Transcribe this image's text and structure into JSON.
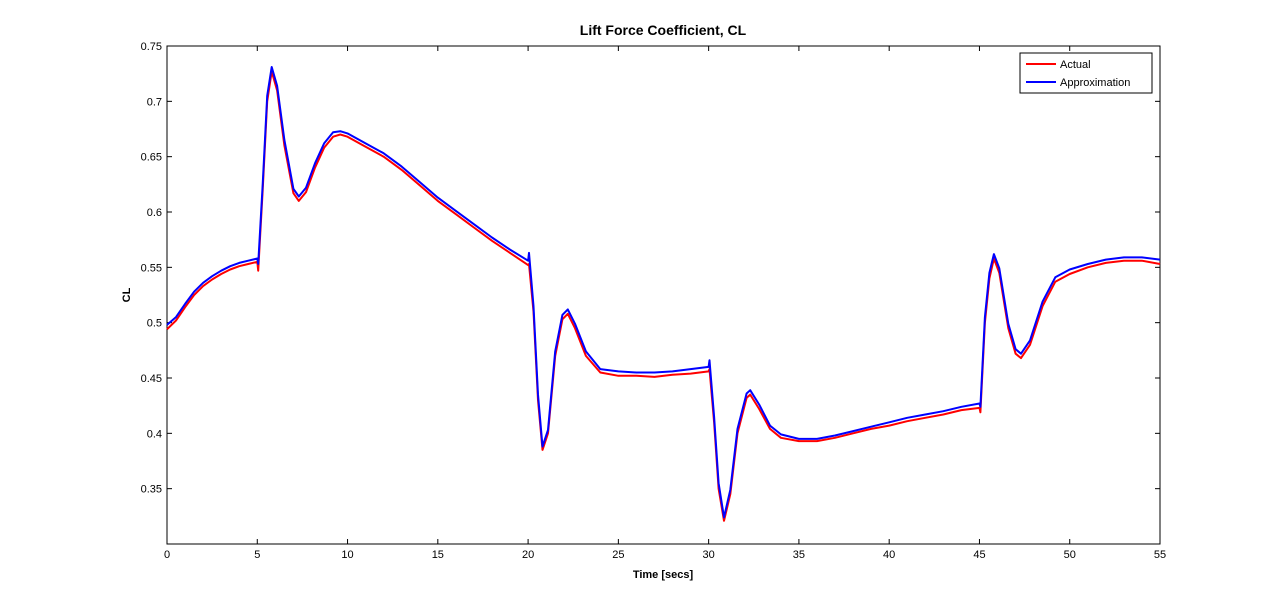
{
  "chart_data": {
    "type": "line",
    "title": "Lift Force Coefficient, CL",
    "xlabel": "Time [secs]",
    "ylabel": "CL",
    "xlim": [
      0,
      55
    ],
    "ylim": [
      0.3,
      0.75
    ],
    "xticks": [
      0,
      5,
      10,
      15,
      20,
      25,
      30,
      35,
      40,
      45,
      50,
      55
    ],
    "yticks": [
      0.35,
      0.4,
      0.45,
      0.5,
      0.55,
      0.6,
      0.65,
      0.7,
      0.75
    ],
    "grid": false,
    "legend_position": "top-right",
    "series": [
      {
        "name": "Actual",
        "color": "#ff0000",
        "points": [
          [
            0,
            0.494
          ],
          [
            0.5,
            0.502
          ],
          [
            1,
            0.514
          ],
          [
            1.5,
            0.525
          ],
          [
            2,
            0.533
          ],
          [
            2.5,
            0.539
          ],
          [
            3,
            0.544
          ],
          [
            3.5,
            0.548
          ],
          [
            4,
            0.551
          ],
          [
            4.5,
            0.553
          ],
          [
            5,
            0.555
          ],
          [
            5.05,
            0.547
          ],
          [
            5.3,
            0.62
          ],
          [
            5.55,
            0.7
          ],
          [
            5.8,
            0.727
          ],
          [
            6.1,
            0.71
          ],
          [
            6.5,
            0.66
          ],
          [
            7,
            0.617
          ],
          [
            7.3,
            0.61
          ],
          [
            7.7,
            0.618
          ],
          [
            8.2,
            0.64
          ],
          [
            8.7,
            0.658
          ],
          [
            9.2,
            0.668
          ],
          [
            9.6,
            0.67
          ],
          [
            10,
            0.668
          ],
          [
            11,
            0.659
          ],
          [
            12,
            0.65
          ],
          [
            13,
            0.638
          ],
          [
            14,
            0.624
          ],
          [
            15,
            0.61
          ],
          [
            16,
            0.598
          ],
          [
            17,
            0.586
          ],
          [
            18,
            0.574
          ],
          [
            19,
            0.563
          ],
          [
            20,
            0.552
          ],
          [
            20.05,
            0.553
          ],
          [
            20.3,
            0.51
          ],
          [
            20.55,
            0.43
          ],
          [
            20.8,
            0.385
          ],
          [
            21.1,
            0.4
          ],
          [
            21.5,
            0.47
          ],
          [
            21.9,
            0.503
          ],
          [
            22.2,
            0.508
          ],
          [
            22.6,
            0.495
          ],
          [
            23.2,
            0.47
          ],
          [
            24,
            0.455
          ],
          [
            25,
            0.452
          ],
          [
            26,
            0.452
          ],
          [
            27,
            0.451
          ],
          [
            28,
            0.453
          ],
          [
            29,
            0.454
          ],
          [
            30,
            0.456
          ],
          [
            30.05,
            0.458
          ],
          [
            30.3,
            0.41
          ],
          [
            30.55,
            0.35
          ],
          [
            30.85,
            0.321
          ],
          [
            31.2,
            0.345
          ],
          [
            31.6,
            0.4
          ],
          [
            32.1,
            0.432
          ],
          [
            32.3,
            0.435
          ],
          [
            32.8,
            0.422
          ],
          [
            33.4,
            0.404
          ],
          [
            34,
            0.396
          ],
          [
            35,
            0.393
          ],
          [
            36,
            0.393
          ],
          [
            37,
            0.396
          ],
          [
            38,
            0.4
          ],
          [
            39,
            0.404
          ],
          [
            40,
            0.407
          ],
          [
            41,
            0.411
          ],
          [
            42,
            0.414
          ],
          [
            43,
            0.417
          ],
          [
            44,
            0.421
          ],
          [
            45,
            0.423
          ],
          [
            45.05,
            0.419
          ],
          [
            45.3,
            0.5
          ],
          [
            45.55,
            0.54
          ],
          [
            45.8,
            0.558
          ],
          [
            46.1,
            0.545
          ],
          [
            46.6,
            0.495
          ],
          [
            47,
            0.472
          ],
          [
            47.3,
            0.468
          ],
          [
            47.8,
            0.48
          ],
          [
            48.5,
            0.515
          ],
          [
            49.2,
            0.537
          ],
          [
            50,
            0.544
          ],
          [
            51,
            0.55
          ],
          [
            52,
            0.554
          ],
          [
            53,
            0.556
          ],
          [
            54,
            0.556
          ],
          [
            55,
            0.553
          ]
        ]
      },
      {
        "name": "Approximation",
        "color": "#0000ff",
        "points": [
          [
            0,
            0.498
          ],
          [
            0.5,
            0.505
          ],
          [
            1,
            0.517
          ],
          [
            1.5,
            0.528
          ],
          [
            2,
            0.536
          ],
          [
            2.5,
            0.542
          ],
          [
            3,
            0.547
          ],
          [
            3.5,
            0.551
          ],
          [
            4,
            0.554
          ],
          [
            4.5,
            0.556
          ],
          [
            5,
            0.558
          ],
          [
            5.05,
            0.553
          ],
          [
            5.3,
            0.625
          ],
          [
            5.55,
            0.705
          ],
          [
            5.8,
            0.731
          ],
          [
            6.1,
            0.714
          ],
          [
            6.5,
            0.665
          ],
          [
            7,
            0.621
          ],
          [
            7.3,
            0.614
          ],
          [
            7.7,
            0.622
          ],
          [
            8.2,
            0.644
          ],
          [
            8.7,
            0.662
          ],
          [
            9.2,
            0.672
          ],
          [
            9.6,
            0.673
          ],
          [
            10,
            0.671
          ],
          [
            11,
            0.662
          ],
          [
            12,
            0.653
          ],
          [
            13,
            0.641
          ],
          [
            14,
            0.627
          ],
          [
            15,
            0.613
          ],
          [
            16,
            0.601
          ],
          [
            17,
            0.589
          ],
          [
            18,
            0.577
          ],
          [
            19,
            0.566
          ],
          [
            20,
            0.556
          ],
          [
            20.05,
            0.563
          ],
          [
            20.3,
            0.515
          ],
          [
            20.55,
            0.435
          ],
          [
            20.8,
            0.388
          ],
          [
            21.1,
            0.403
          ],
          [
            21.5,
            0.474
          ],
          [
            21.9,
            0.507
          ],
          [
            22.2,
            0.512
          ],
          [
            22.6,
            0.499
          ],
          [
            23.2,
            0.474
          ],
          [
            24,
            0.458
          ],
          [
            25,
            0.456
          ],
          [
            26,
            0.455
          ],
          [
            27,
            0.455
          ],
          [
            28,
            0.456
          ],
          [
            29,
            0.458
          ],
          [
            30,
            0.46
          ],
          [
            30.05,
            0.466
          ],
          [
            30.3,
            0.415
          ],
          [
            30.55,
            0.355
          ],
          [
            30.85,
            0.324
          ],
          [
            31.2,
            0.349
          ],
          [
            31.6,
            0.404
          ],
          [
            32.1,
            0.436
          ],
          [
            32.3,
            0.439
          ],
          [
            32.8,
            0.426
          ],
          [
            33.4,
            0.407
          ],
          [
            34,
            0.399
          ],
          [
            35,
            0.395
          ],
          [
            36,
            0.395
          ],
          [
            37,
            0.398
          ],
          [
            38,
            0.402
          ],
          [
            39,
            0.406
          ],
          [
            40,
            0.41
          ],
          [
            41,
            0.414
          ],
          [
            42,
            0.417
          ],
          [
            43,
            0.42
          ],
          [
            44,
            0.424
          ],
          [
            45,
            0.427
          ],
          [
            45.05,
            0.424
          ],
          [
            45.3,
            0.505
          ],
          [
            45.55,
            0.545
          ],
          [
            45.8,
            0.562
          ],
          [
            46.1,
            0.549
          ],
          [
            46.6,
            0.499
          ],
          [
            47,
            0.476
          ],
          [
            47.3,
            0.472
          ],
          [
            47.8,
            0.484
          ],
          [
            48.5,
            0.519
          ],
          [
            49.2,
            0.541
          ],
          [
            50,
            0.548
          ],
          [
            51,
            0.553
          ],
          [
            52,
            0.557
          ],
          [
            53,
            0.559
          ],
          [
            54,
            0.559
          ],
          [
            55,
            0.557
          ]
        ]
      }
    ]
  }
}
